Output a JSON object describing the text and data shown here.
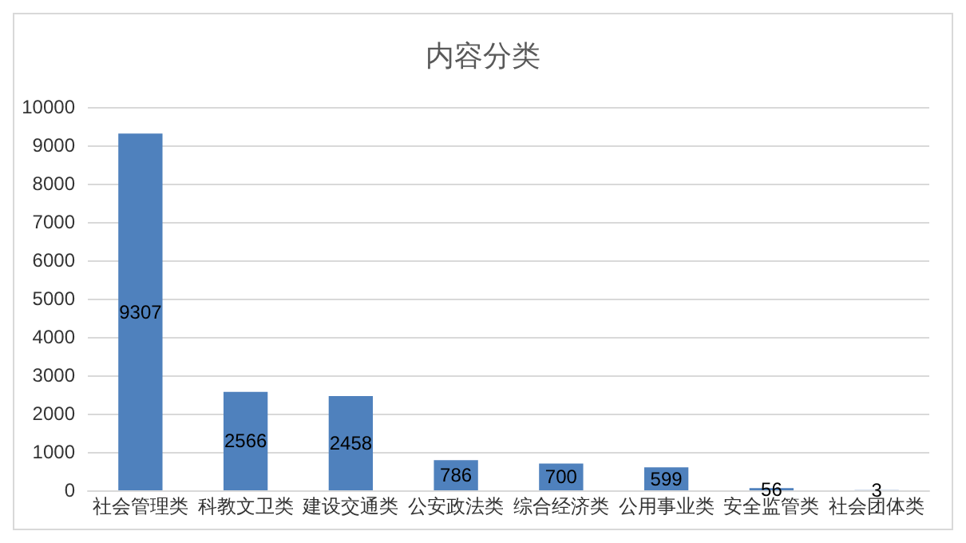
{
  "chart_data": {
    "type": "bar",
    "title": "内容分类",
    "categories": [
      "社会管理类",
      "科教文卫类",
      "建设交通类",
      "公安政法类",
      "综合经济类",
      "公用事业类",
      "安全监管类",
      "社会团体类"
    ],
    "values": [
      9307,
      2566,
      2458,
      786,
      700,
      599,
      56,
      3
    ],
    "color": "#4f81bd",
    "ylim": [
      0,
      10000
    ],
    "yticks": [
      0,
      1000,
      2000,
      3000,
      4000,
      5000,
      6000,
      7000,
      8000,
      9000,
      10000
    ],
    "grid": "y",
    "data_labels": true
  }
}
